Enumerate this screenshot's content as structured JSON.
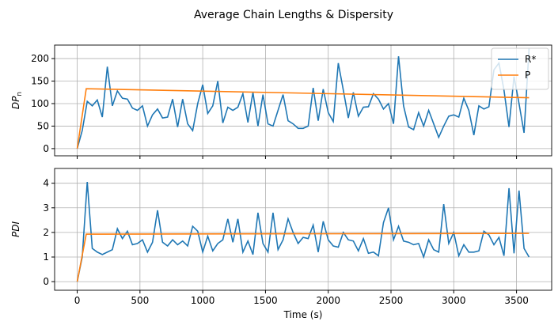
{
  "title": "Average Chain Lengths & Dispersity",
  "chart_data": [
    {
      "type": "line",
      "ylabel": "DP",
      "ylabel_sub": "n",
      "xlim": [
        -180,
        3780
      ],
      "ylim": [
        -16,
        230
      ],
      "xticks": [
        0,
        500,
        1000,
        1500,
        2000,
        2500,
        3000,
        3500
      ],
      "xtick_labels": false,
      "yticks": [
        0,
        50,
        100,
        150,
        200
      ],
      "grid": true,
      "legend": "upper right",
      "series": [
        {
          "name": "R*",
          "color": "#1f77b4",
          "x": [
            0,
            40,
            80,
            120,
            160,
            200,
            240,
            280,
            320,
            360,
            400,
            440,
            480,
            520,
            560,
            600,
            640,
            680,
            720,
            760,
            800,
            840,
            880,
            920,
            960,
            1000,
            1040,
            1080,
            1120,
            1160,
            1200,
            1240,
            1280,
            1320,
            1360,
            1400,
            1440,
            1480,
            1520,
            1560,
            1600,
            1640,
            1680,
            1720,
            1760,
            1800,
            1840,
            1880,
            1920,
            1960,
            2000,
            2040,
            2080,
            2120,
            2160,
            2200,
            2240,
            2280,
            2320,
            2360,
            2400,
            2440,
            2480,
            2520,
            2560,
            2600,
            2640,
            2680,
            2720,
            2760,
            2800,
            2840,
            2880,
            2920,
            2960,
            3000,
            3040,
            3080,
            3120,
            3160,
            3200,
            3240,
            3280,
            3320,
            3360,
            3400,
            3440,
            3480,
            3520,
            3560,
            3600
          ],
          "values": [
            0,
            40,
            105,
            95,
            108,
            70,
            182,
            95,
            128,
            112,
            110,
            90,
            85,
            95,
            50,
            75,
            88,
            68,
            70,
            110,
            48,
            110,
            55,
            40,
            100,
            142,
            78,
            95,
            150,
            57,
            92,
            85,
            92,
            122,
            58,
            125,
            50,
            120,
            55,
            50,
            85,
            120,
            62,
            55,
            45,
            45,
            50,
            135,
            62,
            132,
            80,
            60,
            190,
            130,
            68,
            125,
            72,
            92,
            93,
            122,
            110,
            88,
            100,
            55,
            205,
            95,
            48,
            42,
            80,
            50,
            85,
            55,
            25,
            50,
            72,
            75,
            70,
            112,
            85,
            30,
            95,
            88,
            93,
            175,
            190,
            130,
            48,
            160,
            100,
            35,
            222
          ]
        },
        {
          "name": "P",
          "color": "#ff7f0e",
          "x": [
            0,
            72,
            3600
          ],
          "values": [
            0,
            133,
            113
          ]
        }
      ]
    },
    {
      "type": "line",
      "ylabel": "PDI",
      "xlabel": "Time (s)",
      "xlim": [
        -180,
        3780
      ],
      "ylim": [
        -0.35,
        4.6
      ],
      "xticks": [
        0,
        500,
        1000,
        1500,
        2000,
        2500,
        3000,
        3500
      ],
      "xtick_labels": true,
      "yticks": [
        0,
        1,
        2,
        3,
        4
      ],
      "grid": true,
      "series": [
        {
          "color": "#1f77b4",
          "x": [
            0,
            40,
            80,
            120,
            160,
            200,
            240,
            280,
            320,
            360,
            400,
            440,
            480,
            520,
            560,
            600,
            640,
            680,
            720,
            760,
            800,
            840,
            880,
            920,
            960,
            1000,
            1040,
            1080,
            1120,
            1160,
            1200,
            1240,
            1280,
            1320,
            1360,
            1400,
            1440,
            1480,
            1520,
            1560,
            1600,
            1640,
            1680,
            1720,
            1760,
            1800,
            1840,
            1880,
            1920,
            1960,
            2000,
            2040,
            2080,
            2120,
            2160,
            2200,
            2240,
            2280,
            2320,
            2360,
            2400,
            2440,
            2480,
            2520,
            2560,
            2600,
            2640,
            2680,
            2720,
            2760,
            2800,
            2840,
            2880,
            2920,
            2960,
            3000,
            3040,
            3080,
            3120,
            3160,
            3200,
            3240,
            3280,
            3320,
            3360,
            3400,
            3440,
            3480,
            3520,
            3560,
            3600
          ],
          "values": [
            0,
            1.0,
            4.05,
            1.35,
            1.2,
            1.1,
            1.2,
            1.3,
            2.15,
            1.75,
            2.05,
            1.5,
            1.55,
            1.7,
            1.2,
            1.6,
            2.9,
            1.6,
            1.45,
            1.7,
            1.5,
            1.65,
            1.45,
            2.25,
            2.05,
            1.2,
            1.85,
            1.25,
            1.55,
            1.7,
            2.55,
            1.6,
            2.55,
            1.2,
            1.65,
            1.1,
            2.8,
            1.55,
            1.2,
            2.8,
            1.3,
            1.7,
            2.55,
            2.0,
            1.55,
            1.8,
            1.75,
            2.3,
            1.2,
            2.45,
            1.7,
            1.45,
            1.4,
            2.0,
            1.7,
            1.65,
            1.25,
            1.75,
            1.15,
            1.2,
            1.05,
            2.4,
            3.0,
            1.7,
            2.25,
            1.65,
            1.6,
            1.5,
            1.55,
            1.0,
            1.7,
            1.3,
            1.2,
            3.15,
            1.55,
            2.0,
            1.05,
            1.5,
            1.2,
            1.2,
            1.25,
            2.05,
            1.9,
            1.5,
            1.8,
            1.05,
            3.8,
            1.15,
            3.7,
            1.35,
            1.0
          ]
        },
        {
          "color": "#ff7f0e",
          "x": [
            0,
            72,
            3600
          ],
          "values": [
            0,
            1.93,
            1.96
          ]
        }
      ]
    }
  ]
}
